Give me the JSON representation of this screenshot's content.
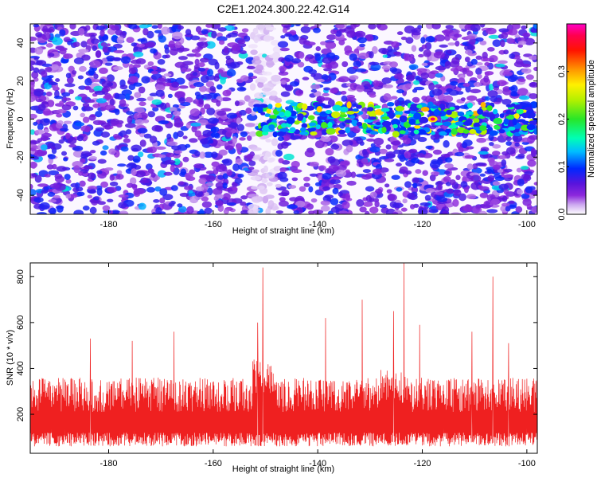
{
  "title": "C2E1.2024.300.22.42.G14",
  "colors": {
    "snr_line": "#ef2020",
    "axis": "#000000",
    "background": "#ffffff"
  },
  "chart_data": [
    {
      "type": "heatmap",
      "xlabel": "Height of straight line (km)",
      "ylabel": "Frequency (Hz)",
      "xlim": [
        -195,
        -98
      ],
      "ylim": [
        -50,
        50
      ],
      "xticks": [
        -180,
        -160,
        -140,
        -120,
        -100
      ],
      "yticks": [
        -40,
        -20,
        0,
        20,
        40
      ],
      "colorbar": {
        "label": "Normalized spectral amplitude",
        "range": [
          0.0,
          0.4
        ],
        "ticks": [
          0.0,
          0.1,
          0.2,
          0.3
        ]
      },
      "features": {
        "signal_band_center_hz": 0,
        "signal_band_x_range_km": [
          -152,
          -98
        ],
        "strongest_peak": {
          "x_km": -118,
          "freq_hz": 0,
          "amplitude": 0.38
        },
        "quiet_column_x_km": -150,
        "background_amplitude": 0.08
      }
    },
    {
      "type": "line",
      "xlabel": "Height of straight line (km)",
      "ylabel": "SNR (10 * v/v)",
      "xlim": [
        -195,
        -98
      ],
      "ylim": [
        30,
        860
      ],
      "xticks": [
        -180,
        -160,
        -140,
        -120,
        -100
      ],
      "yticks": [
        200,
        400,
        600,
        800
      ],
      "series": [
        {
          "baseline_snr": 210,
          "spikes": [
            {
              "x": -150.5,
              "y": 840
            },
            {
              "x": -123.5,
              "y": 860
            },
            {
              "x": -106.5,
              "y": 800
            },
            {
              "x": -131.5,
              "y": 700
            },
            {
              "x": -125.5,
              "y": 650
            },
            {
              "x": -138.5,
              "y": 620
            },
            {
              "x": -120.5,
              "y": 590
            },
            {
              "x": -151.5,
              "y": 600
            },
            {
              "x": -167.5,
              "y": 560
            },
            {
              "x": -110.5,
              "y": 560
            },
            {
              "x": -183.5,
              "y": 530
            },
            {
              "x": -175.5,
              "y": 520
            },
            {
              "x": -103.5,
              "y": 510
            }
          ]
        }
      ]
    }
  ]
}
